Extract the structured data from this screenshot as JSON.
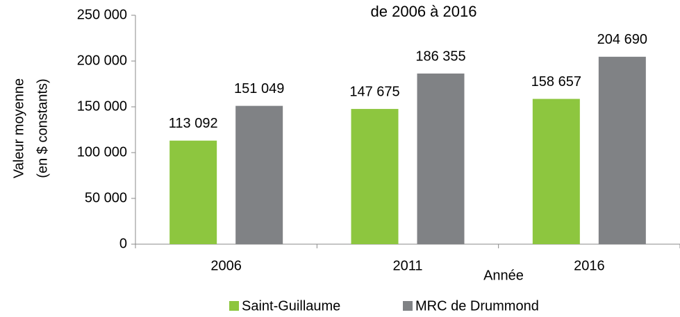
{
  "chart_data": {
    "type": "bar",
    "title": "de 2006 à 2016",
    "y_label": [
      "Valeur moyenne",
      "(en $ constants)"
    ],
    "x_label": "Année",
    "categories": [
      "2006",
      "2011",
      "2016"
    ],
    "series": [
      {
        "name": "Saint-Guillaume",
        "color": "#8dc63f",
        "values": [
          113092,
          147675,
          158657
        ],
        "value_labels": [
          "113 092",
          "147 675",
          "158 657"
        ]
      },
      {
        "name": "MRC de Drummond",
        "color": "#808285",
        "values": [
          151049,
          186355,
          204690
        ],
        "value_labels": [
          "151 049",
          "186 355",
          "204 690"
        ]
      }
    ],
    "ylim": [
      0,
      250000
    ],
    "yticks": [
      0,
      {
        "value": 50000,
        "label": "50 000"
      },
      {
        "value": 100000,
        "label": "100 000"
      },
      {
        "value": 150000,
        "label": "150 000"
      },
      {
        "value": 200000,
        "label": "200 000"
      },
      {
        "value": 250000,
        "label": "250 000"
      }
    ],
    "legend": "bottom"
  }
}
